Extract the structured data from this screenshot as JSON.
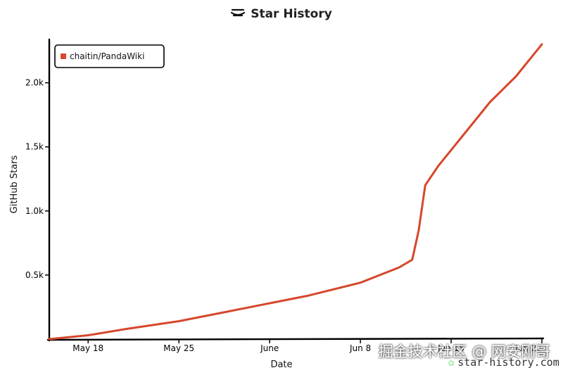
{
  "chart_data": {
    "type": "line",
    "title": "Star History",
    "xlabel": "Date",
    "ylabel": "GitHub Stars",
    "legend": {
      "entries": [
        "chaitin/PandaWiki"
      ],
      "placement": "top-left"
    },
    "x_ticks": [
      "May 18",
      "May 25",
      "June",
      "Jun 8",
      "Jun 15",
      "Jun 22"
    ],
    "y_ticks": [
      "0.5k",
      "1.0k",
      "1.5k",
      "2.0k"
    ],
    "ylim": [
      0,
      2300
    ],
    "grid": false,
    "series": [
      {
        "name": "chaitin/PandaWiki",
        "color": "#d6472b",
        "points": [
          [
            "2025-05-15",
            0
          ],
          [
            "2025-05-18",
            30
          ],
          [
            "2025-05-21",
            80
          ],
          [
            "2025-05-25",
            140
          ],
          [
            "2025-05-28",
            200
          ],
          [
            "2025-06-01",
            280
          ],
          [
            "2025-06-04",
            340
          ],
          [
            "2025-06-08",
            440
          ],
          [
            "2025-06-11",
            560
          ],
          [
            "2025-06-12",
            620
          ],
          [
            "2025-06-12 12:00",
            850
          ],
          [
            "2025-06-13",
            1200
          ],
          [
            "2025-06-14",
            1350
          ],
          [
            "2025-06-16",
            1600
          ],
          [
            "2025-06-18",
            1850
          ],
          [
            "2025-06-20",
            2050
          ],
          [
            "2025-06-22",
            2300
          ]
        ]
      }
    ]
  },
  "watermark": "掘金技术社区 @ 网安刚哥",
  "brand": "star-history.com",
  "title_icon": "star-history-logo-icon"
}
